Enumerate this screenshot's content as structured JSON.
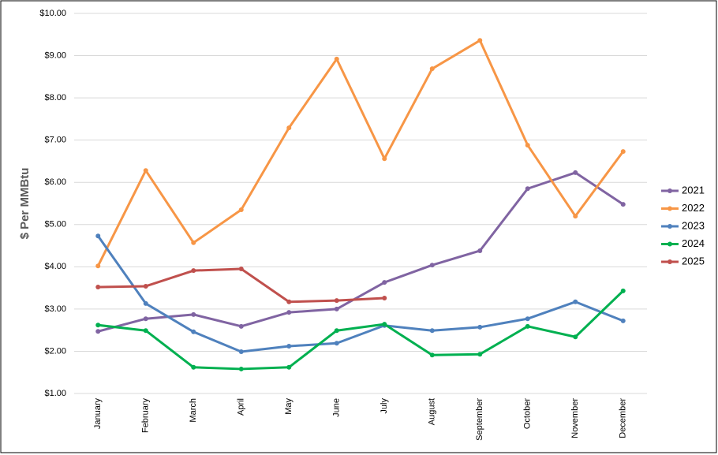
{
  "chart_data": {
    "type": "line",
    "y_label": "$ Per MMBtu",
    "categories": [
      "January",
      "February",
      "March",
      "April",
      "May",
      "June",
      "July",
      "August",
      "September",
      "October",
      "November",
      "December"
    ],
    "series": [
      {
        "name": "2021",
        "color": "#8064a2",
        "values": [
          2.47,
          2.77,
          2.87,
          2.59,
          2.92,
          3.0,
          3.63,
          4.04,
          4.38,
          5.85,
          6.23,
          5.48
        ]
      },
      {
        "name": "2022",
        "color": "#f79646",
        "values": [
          4.02,
          6.28,
          4.57,
          5.35,
          7.29,
          8.92,
          6.56,
          8.69,
          9.36,
          6.88,
          5.2,
          6.73
        ]
      },
      {
        "name": "2023",
        "color": "#4f81bd",
        "values": [
          4.73,
          3.13,
          2.46,
          1.99,
          2.12,
          2.19,
          2.61,
          2.49,
          2.57,
          2.77,
          3.17,
          2.72
        ]
      },
      {
        "name": "2024",
        "color": "#00b050",
        "values": [
          2.62,
          2.49,
          1.62,
          1.58,
          1.62,
          2.49,
          2.64,
          1.91,
          1.93,
          2.59,
          2.34,
          3.43
        ]
      },
      {
        "name": "2025",
        "color": "#c0504d",
        "values": [
          3.52,
          3.54,
          3.91,
          3.95,
          3.17,
          3.2,
          3.26,
          null,
          null,
          null,
          null,
          null
        ]
      }
    ],
    "ylim": [
      1,
      10
    ],
    "yticks": [
      {
        "value": 1,
        "label": "$1.00"
      },
      {
        "value": 2,
        "label": "$2.00"
      },
      {
        "value": 3,
        "label": "$3.00"
      },
      {
        "value": 4,
        "label": "$4.00"
      },
      {
        "value": 5,
        "label": "$5.00"
      },
      {
        "value": 6,
        "label": "$6.00"
      },
      {
        "value": 7,
        "label": "$7.00"
      },
      {
        "value": 8,
        "label": "$8.00"
      },
      {
        "value": 9,
        "label": "$9.00"
      },
      {
        "value": 10,
        "label": "$10.00"
      }
    ],
    "grid": true,
    "legend": "right"
  }
}
